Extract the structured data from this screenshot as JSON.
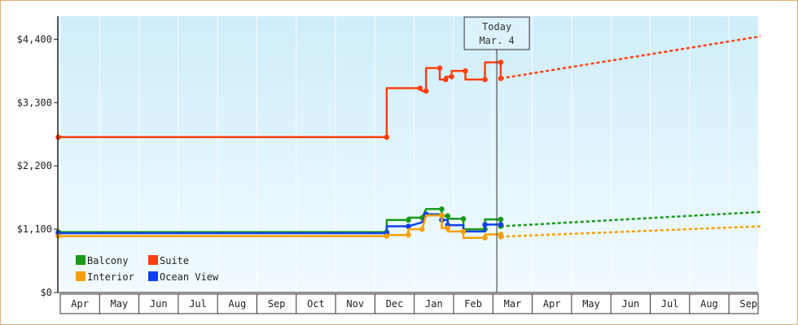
{
  "chart_data": {
    "type": "line",
    "title": "",
    "xlabel": "",
    "ylabel": "",
    "ylim": [
      0,
      4800
    ],
    "y_ticks": [
      "$0",
      "$1,100",
      "$2,200",
      "$3,300",
      "$4,400"
    ],
    "y_tick_values": [
      0,
      1100,
      2200,
      3300,
      4400
    ],
    "x_months": [
      "Apr",
      "May",
      "Jun",
      "Jul",
      "Aug",
      "Sep",
      "Oct",
      "Nov",
      "Dec",
      "Jan",
      "Feb",
      "Mar",
      "Apr",
      "May",
      "Jun",
      "Jul",
      "Aug",
      "Sep"
    ],
    "today_marker": {
      "line1": "Today",
      "line2": "Mar. 4",
      "x": 11.1
    },
    "legend": [
      {
        "name": "Balcony",
        "color": "#1a9a1a"
      },
      {
        "name": "Suite",
        "color": "#ff4010"
      },
      {
        "name": "Interior",
        "color": "#f5a000"
      },
      {
        "name": "Ocean View",
        "color": "#1040ee"
      }
    ],
    "series": [
      {
        "name": "Suite",
        "color": "#ff4010",
        "points": [
          [
            -0.05,
            2700
          ],
          [
            8.3,
            2700
          ],
          [
            8.3,
            3550
          ],
          [
            9.15,
            3550
          ],
          [
            9.2,
            3500
          ],
          [
            9.3,
            3500
          ],
          [
            9.3,
            3900
          ],
          [
            9.65,
            3900
          ],
          [
            9.65,
            3700
          ],
          [
            9.8,
            3700
          ],
          [
            9.8,
            3750
          ],
          [
            9.95,
            3750
          ],
          [
            9.95,
            3850
          ],
          [
            10.3,
            3850
          ],
          [
            10.3,
            3700
          ],
          [
            10.8,
            3700
          ],
          [
            10.8,
            4000
          ],
          [
            11.2,
            4000
          ],
          [
            11.2,
            3720
          ]
        ],
        "projection": [
          [
            11.2,
            3720
          ],
          [
            17.8,
            4450
          ]
        ]
      },
      {
        "name": "Balcony",
        "color": "#1a9a1a",
        "points": [
          [
            -0.05,
            1050
          ],
          [
            8.3,
            1050
          ],
          [
            8.3,
            1260
          ],
          [
            8.85,
            1260
          ],
          [
            8.85,
            1300
          ],
          [
            9.2,
            1300
          ],
          [
            9.3,
            1450
          ],
          [
            9.7,
            1450
          ],
          [
            9.7,
            1330
          ],
          [
            9.85,
            1330
          ],
          [
            9.85,
            1280
          ],
          [
            10.25,
            1280
          ],
          [
            10.25,
            1100
          ],
          [
            10.8,
            1100
          ],
          [
            10.8,
            1270
          ],
          [
            11.2,
            1270
          ],
          [
            11.2,
            1150
          ]
        ],
        "projection": [
          [
            11.2,
            1150
          ],
          [
            17.8,
            1400
          ]
        ]
      },
      {
        "name": "Ocean View",
        "color": "#1040ee",
        "points": [
          [
            -0.05,
            1030
          ],
          [
            8.3,
            1030
          ],
          [
            8.3,
            1150
          ],
          [
            8.85,
            1150
          ],
          [
            9.2,
            1220
          ],
          [
            9.3,
            1360
          ],
          [
            9.7,
            1360
          ],
          [
            9.7,
            1260
          ],
          [
            9.85,
            1260
          ],
          [
            9.85,
            1170
          ],
          [
            10.25,
            1170
          ],
          [
            10.25,
            1060
          ],
          [
            10.8,
            1060
          ],
          [
            10.8,
            1180
          ],
          [
            11.2,
            1180
          ]
        ],
        "projection": []
      },
      {
        "name": "Interior",
        "color": "#f5a000",
        "points": [
          [
            -0.05,
            980
          ],
          [
            8.3,
            980
          ],
          [
            8.3,
            1000
          ],
          [
            8.85,
            1000
          ],
          [
            8.85,
            1100
          ],
          [
            9.2,
            1100
          ],
          [
            9.3,
            1340
          ],
          [
            9.7,
            1340
          ],
          [
            9.7,
            1120
          ],
          [
            9.85,
            1120
          ],
          [
            9.85,
            1060
          ],
          [
            10.25,
            1060
          ],
          [
            10.25,
            950
          ],
          [
            10.8,
            950
          ],
          [
            10.8,
            1010
          ],
          [
            11.2,
            1010
          ],
          [
            11.2,
            970
          ]
        ],
        "projection": [
          [
            11.2,
            970
          ],
          [
            17.8,
            1150
          ]
        ]
      }
    ]
  }
}
